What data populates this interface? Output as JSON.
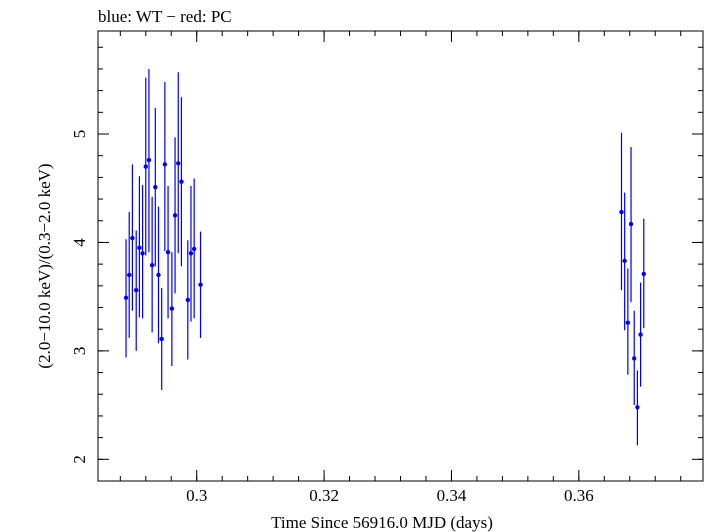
{
  "chart_data": {
    "type": "scatter",
    "title": "blue: WT − red: PC",
    "xlabel": "Time Since 56916.0 MJD (days)",
    "ylabel": "(2.0−10.0 keV)/(0.3−2.0 keV)",
    "xlim": [
      0.2845,
      0.3795
    ],
    "ylim": [
      1.8,
      5.95
    ],
    "xticks": [
      0.3,
      0.32,
      0.34,
      0.36
    ],
    "xtick_labels": [
      "0.3",
      "0.32",
      "0.34",
      "0.36"
    ],
    "yticks": [
      2,
      3,
      4,
      5
    ],
    "ytick_labels": [
      "2",
      "3",
      "4",
      "5"
    ],
    "x_minor_step": 0.004,
    "y_minor_step": 0.2,
    "grid": false,
    "series": [
      {
        "color": "#0000ee",
        "points": [
          {
            "x": 0.2889,
            "y": 3.49,
            "lo": 2.94,
            "hi": 4.03
          },
          {
            "x": 0.2894,
            "y": 3.7,
            "lo": 3.12,
            "hi": 4.28
          },
          {
            "x": 0.2899,
            "y": 4.04,
            "lo": 3.37,
            "hi": 4.72
          },
          {
            "x": 0.2905,
            "y": 3.56,
            "lo": 3.0,
            "hi": 4.11
          },
          {
            "x": 0.291,
            "y": 3.95,
            "lo": 3.31,
            "hi": 4.61
          },
          {
            "x": 0.2915,
            "y": 3.9,
            "lo": 3.3,
            "hi": 4.53
          },
          {
            "x": 0.292,
            "y": 4.7,
            "lo": 3.88,
            "hi": 5.52
          },
          {
            "x": 0.2925,
            "y": 4.76,
            "lo": 3.91,
            "hi": 5.6
          },
          {
            "x": 0.293,
            "y": 3.79,
            "lo": 3.17,
            "hi": 4.42
          },
          {
            "x": 0.2935,
            "y": 4.51,
            "lo": 3.78,
            "hi": 5.24
          },
          {
            "x": 0.294,
            "y": 3.7,
            "lo": 3.07,
            "hi": 4.33
          },
          {
            "x": 0.2945,
            "y": 3.11,
            "lo": 2.64,
            "hi": 3.58
          },
          {
            "x": 0.295,
            "y": 4.72,
            "lo": 3.92,
            "hi": 5.48
          },
          {
            "x": 0.2955,
            "y": 3.91,
            "lo": 3.3,
            "hi": 4.52
          },
          {
            "x": 0.2961,
            "y": 3.39,
            "lo": 2.86,
            "hi": 3.91
          },
          {
            "x": 0.2966,
            "y": 4.25,
            "lo": 3.53,
            "hi": 4.97
          },
          {
            "x": 0.2971,
            "y": 4.73,
            "lo": 3.9,
            "hi": 5.57
          },
          {
            "x": 0.2976,
            "y": 4.56,
            "lo": 3.78,
            "hi": 5.34
          },
          {
            "x": 0.2986,
            "y": 3.47,
            "lo": 2.92,
            "hi": 4.02
          },
          {
            "x": 0.2991,
            "y": 3.9,
            "lo": 3.27,
            "hi": 4.52
          },
          {
            "x": 0.2996,
            "y": 3.94,
            "lo": 3.3,
            "hi": 4.59
          },
          {
            "x": 0.3006,
            "y": 3.61,
            "lo": 3.12,
            "hi": 4.1
          },
          {
            "x": 0.3667,
            "y": 4.28,
            "lo": 3.56,
            "hi": 5.01
          },
          {
            "x": 0.3672,
            "y": 3.83,
            "lo": 3.19,
            "hi": 4.46
          },
          {
            "x": 0.3677,
            "y": 3.26,
            "lo": 2.78,
            "hi": 3.76
          },
          {
            "x": 0.3682,
            "y": 4.17,
            "lo": 3.45,
            "hi": 4.88
          },
          {
            "x": 0.3687,
            "y": 2.93,
            "lo": 2.5,
            "hi": 3.37
          },
          {
            "x": 0.3692,
            "y": 2.48,
            "lo": 2.13,
            "hi": 2.82
          },
          {
            "x": 0.3697,
            "y": 3.15,
            "lo": 2.67,
            "hi": 3.63
          },
          {
            "x": 0.3702,
            "y": 3.71,
            "lo": 3.21,
            "hi": 4.22
          }
        ]
      }
    ]
  }
}
